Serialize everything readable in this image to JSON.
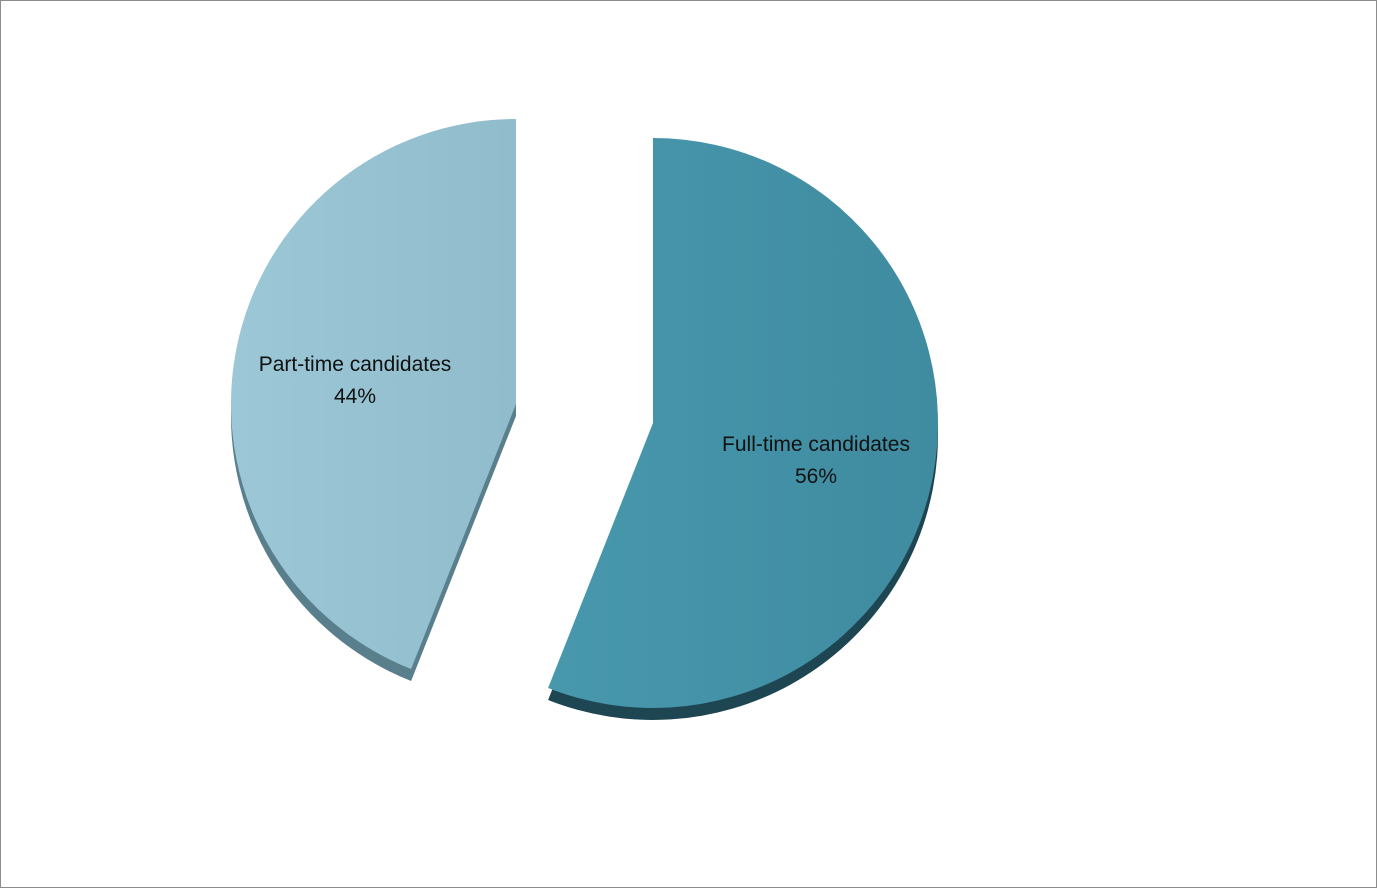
{
  "chart_data": {
    "type": "pie",
    "title": "",
    "legend": "none",
    "slices": [
      {
        "category": "Full-time candidates",
        "value": 56,
        "label": "56%",
        "color": "#4593a8"
      },
      {
        "category": "Part-time candidates",
        "value": 44,
        "label": "44%",
        "color": "#95c0d0"
      }
    ]
  }
}
